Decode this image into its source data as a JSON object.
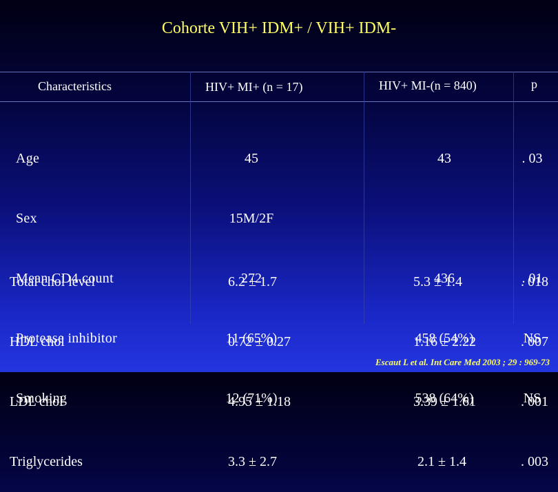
{
  "title": "Cohorte VIH+ IDM+ / VIH+ IDM-",
  "headers": {
    "characteristics": "Characteristics",
    "mi_pos": "HIV+ MI+ (n = 17)",
    "mi_neg": "HIV+ MI-(n = 840)",
    "p": "p"
  },
  "group1": {
    "labels": [
      "Age",
      "Sex",
      "Mean CD4 count",
      "Protease inhibitor",
      "Smoking"
    ],
    "mi_pos": [
      "45",
      "15M/2F",
      "272",
      "11 (65%)",
      "12 (71%)"
    ],
    "mi_neg": [
      "43",
      "",
      "436",
      "458 (54%)",
      "538 (64%)"
    ],
    "p": [
      ". 03",
      "",
      ". 01",
      "NS",
      "NS"
    ]
  },
  "group2": {
    "labels": [
      "Total chol level",
      "HDL chol",
      "LDL chol",
      "Triglycerides"
    ],
    "mi_pos": [
      "6.2 ± 1.7",
      "0.72 ± 0.27",
      "4.95 ± 1.18",
      "3.3 ± 2.7"
    ],
    "mi_neg": [
      "5.3 ± 1.4",
      "1.16 ± 2.22",
      "3.39 ± 1.61",
      "2.1 ± 1.4"
    ],
    "p": [
      ". 018",
      ". 007",
      ". 001",
      ". 003"
    ]
  },
  "citation": "Escaut L et al. Int Care Med 2003 ; 29 : 969-73",
  "colors": {
    "title": "#ffff66",
    "text": "#ffffff",
    "background_top": "#010013",
    "background_bottom": "#2436e0"
  }
}
